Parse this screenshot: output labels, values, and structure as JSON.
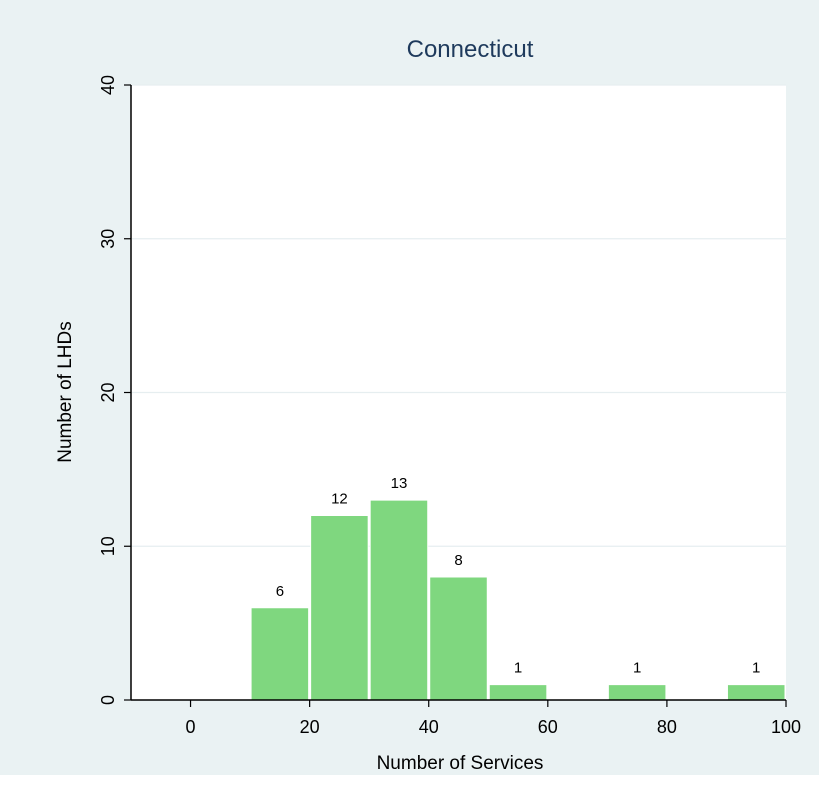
{
  "chart_data": {
    "type": "bar",
    "title": "Connecticut",
    "xlabel": "Number of Services",
    "ylabel": "Number of LHDs",
    "xlim": [
      -10,
      100
    ],
    "ylim": [
      0,
      40
    ],
    "x_ticks": [
      0,
      20,
      40,
      60,
      80,
      100
    ],
    "y_ticks": [
      0,
      10,
      20,
      30,
      40
    ],
    "bin_width": 10,
    "bins": [
      {
        "start": 10,
        "end": 20,
        "value": 6
      },
      {
        "start": 20,
        "end": 30,
        "value": 12
      },
      {
        "start": 30,
        "end": 40,
        "value": 13
      },
      {
        "start": 40,
        "end": 50,
        "value": 8
      },
      {
        "start": 50,
        "end": 60,
        "value": 1
      },
      {
        "start": 70,
        "end": 80,
        "value": 1
      },
      {
        "start": 90,
        "end": 100,
        "value": 1
      }
    ],
    "bar_color": "#7fd77f",
    "grid": true,
    "legend": "none"
  }
}
